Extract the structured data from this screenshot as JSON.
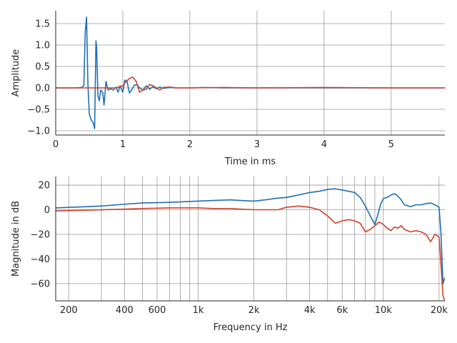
{
  "chart_data": [
    {
      "type": "line",
      "xlabel": "Time in ms",
      "ylabel": "Amplitude",
      "xlim": [
        0,
        5.8
      ],
      "ylim": [
        -1.1,
        1.8
      ],
      "x_ticks": [
        {
          "value": 0,
          "label": "0"
        },
        {
          "value": 1,
          "label": "1"
        },
        {
          "value": 2,
          "label": "2"
        },
        {
          "value": 3,
          "label": "3"
        },
        {
          "value": 4,
          "label": "4"
        },
        {
          "value": 5,
          "label": "5"
        }
      ],
      "y_ticks": [
        {
          "value": -1.0,
          "label": "−1.0"
        },
        {
          "value": -0.5,
          "label": "−0.5"
        },
        {
          "value": 0.0,
          "label": "0.0"
        },
        {
          "value": 0.5,
          "label": "0.5"
        },
        {
          "value": 1.0,
          "label": "1.0"
        },
        {
          "value": 1.5,
          "label": "1.5"
        }
      ],
      "grid": true,
      "series": [
        {
          "color": "#1f6fb4",
          "x": [
            0,
            0.3,
            0.38,
            0.42,
            0.44,
            0.46,
            0.48,
            0.5,
            0.53,
            0.56,
            0.58,
            0.6,
            0.61,
            0.63,
            0.65,
            0.67,
            0.7,
            0.72,
            0.75,
            0.78,
            0.82,
            0.86,
            0.9,
            0.93,
            0.96,
            1.0,
            1.03,
            1.06,
            1.1,
            1.13,
            1.17,
            1.21,
            1.25,
            1.3,
            1.35,
            1.4,
            1.45,
            1.5,
            1.55,
            1.6,
            1.7,
            1.8,
            2.0,
            2.2,
            2.5,
            3.0,
            4.0,
            5.0,
            5.8
          ],
          "y": [
            0.0,
            0.0,
            0.01,
            0.05,
            1.3,
            1.65,
            0.1,
            -0.6,
            -0.75,
            -0.82,
            -0.95,
            1.1,
            0.95,
            -0.2,
            -0.3,
            -0.05,
            -0.1,
            -0.4,
            0.15,
            -0.05,
            -0.02,
            -0.05,
            0.02,
            -0.1,
            0.05,
            -0.1,
            0.18,
            0.17,
            -0.12,
            -0.05,
            0.06,
            0.08,
            0.0,
            -0.05,
            0.05,
            -0.03,
            0.03,
            -0.02,
            0.02,
            -0.01,
            0.01,
            0.0,
            0.0,
            0.01,
            0.0,
            0.0,
            0.0,
            0.0,
            0.0
          ]
        },
        {
          "color": "#d0402a",
          "x": [
            0,
            0.9,
            1.0,
            1.05,
            1.1,
            1.15,
            1.2,
            1.25,
            1.3,
            1.35,
            1.4,
            1.45,
            1.5,
            1.55,
            1.6,
            1.7,
            1.8,
            2.0,
            2.5,
            3.0,
            4.0,
            5.0,
            5.8
          ],
          "y": [
            0.0,
            0.0,
            0.05,
            0.15,
            0.22,
            0.25,
            0.15,
            -0.1,
            -0.05,
            -0.03,
            0.08,
            0.05,
            0.0,
            -0.05,
            0.01,
            0.02,
            0.0,
            0.0,
            0.01,
            0.0,
            0.01,
            0.0,
            0.0
          ]
        }
      ]
    },
    {
      "type": "line",
      "xscale": "log",
      "xlabel": "Frequency in Hz",
      "ylabel": "Magnitude in dB",
      "xlim": [
        170,
        21500
      ],
      "ylim": [
        -74,
        27
      ],
      "x_ticks": [
        {
          "value": 200,
          "label": "200"
        },
        {
          "value": 400,
          "label": "400"
        },
        {
          "value": 600,
          "label": "600"
        },
        {
          "value": 1000,
          "label": "1k"
        },
        {
          "value": 2000,
          "label": "2k"
        },
        {
          "value": 4000,
          "label": "4k"
        },
        {
          "value": 6000,
          "label": "6k"
        },
        {
          "value": 10000,
          "label": "10k"
        },
        {
          "value": 20000,
          "label": "20k"
        }
      ],
      "y_ticks": [
        {
          "value": -60,
          "label": "−60"
        },
        {
          "value": -40,
          "label": "−40"
        },
        {
          "value": -20,
          "label": "−20"
        },
        {
          "value": 0,
          "label": "0"
        },
        {
          "value": 20,
          "label": "20"
        }
      ],
      "grid": true,
      "series": [
        {
          "color": "#1f6fb4",
          "x": [
            170,
            300,
            400,
            500,
            700,
            1000,
            1200,
            1500,
            1700,
            2000,
            2300,
            2700,
            3000,
            3500,
            4000,
            4500,
            5000,
            5500,
            6000,
            6500,
            7000,
            7500,
            8000,
            8500,
            9000,
            9300,
            9700,
            10000,
            10500,
            11000,
            11500,
            12000,
            12500,
            13000,
            14000,
            15000,
            16000,
            17000,
            18000,
            19000,
            20000,
            20500,
            21000,
            21500
          ],
          "y": [
            1.5,
            3,
            4.5,
            5.5,
            6,
            7,
            7.5,
            8,
            7.5,
            7,
            8,
            9.5,
            10,
            12,
            14,
            15,
            16.5,
            17,
            16,
            15,
            14,
            10,
            3,
            -5,
            -12,
            -5,
            5,
            9,
            10,
            12,
            13,
            11,
            8,
            4,
            2.5,
            4,
            4,
            5,
            5.5,
            4,
            2,
            -20,
            -60,
            -55
          ]
        },
        {
          "color": "#d0402a",
          "x": [
            170,
            400,
            500,
            700,
            1000,
            1200,
            1500,
            1700,
            2000,
            2300,
            2700,
            3000,
            3500,
            4000,
            4500,
            5000,
            5500,
            6000,
            6500,
            7000,
            7500,
            8000,
            8500,
            9000,
            9500,
            10000,
            10500,
            11000,
            11500,
            12000,
            12500,
            13000,
            14000,
            15000,
            16000,
            17000,
            18000,
            19000,
            20000,
            20500,
            21000,
            21500
          ],
          "y": [
            -1,
            0.5,
            1,
            1.5,
            1.5,
            1,
            1,
            0.5,
            0,
            0,
            0,
            2,
            3,
            2,
            0,
            -5,
            -11,
            -9,
            -8,
            -9,
            -11,
            -18,
            -16,
            -13,
            -10,
            -12,
            -15,
            -17,
            -14,
            -15,
            -13,
            -16,
            -18,
            -17,
            -18,
            -20,
            -26,
            -20,
            -22,
            -45,
            -70,
            -74
          ]
        }
      ]
    }
  ]
}
